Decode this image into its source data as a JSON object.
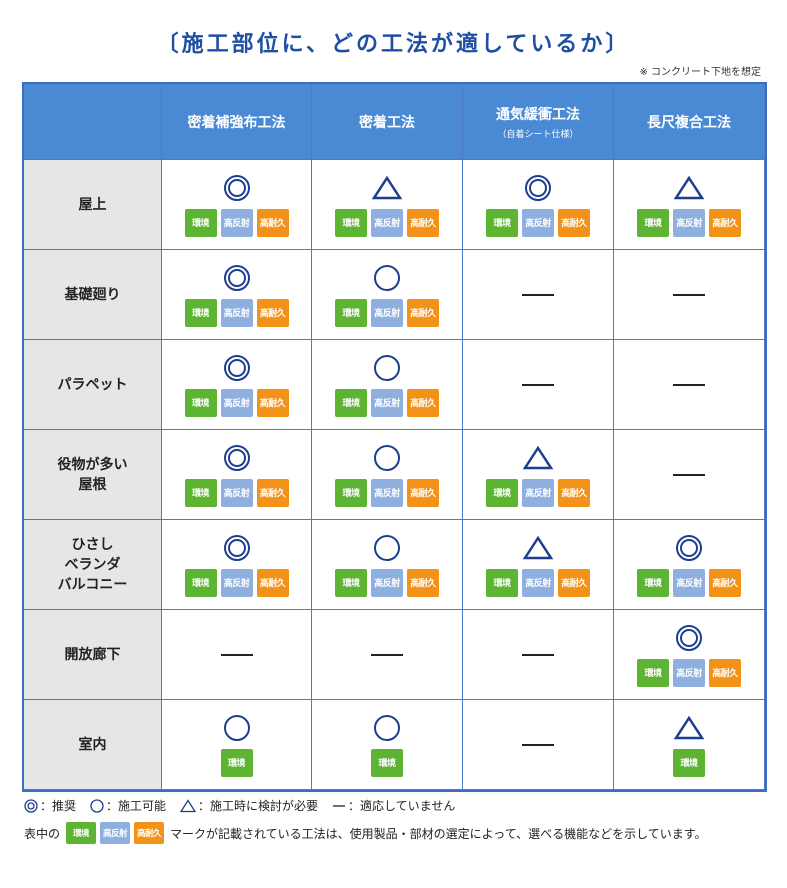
{
  "title": "〔施工部位に、どの工法が適しているか〕",
  "note": "※ コンクリート下地を想定",
  "headers": [
    {
      "label": "密着補強布工法",
      "sub": ""
    },
    {
      "label": "密着工法",
      "sub": ""
    },
    {
      "label": "通気緩衝工法",
      "sub": "（自着シート仕様）"
    },
    {
      "label": "長尺複合工法",
      "sub": ""
    }
  ],
  "badge_labels": {
    "env": "環境",
    "refl": "高反射",
    "dur": "高耐久"
  },
  "colors": {
    "header_bg": "#4a8ad4",
    "row_label_bg": "#e6e6e6",
    "border": "#3d6cc0",
    "mark": "#1d3e8f",
    "env": "#5cb432",
    "refl": "#8fb0df",
    "dur": "#f29218"
  },
  "rows": [
    {
      "label": "屋上",
      "cells": [
        {
          "mark": "double-circle",
          "badges": [
            "env",
            "refl",
            "dur"
          ]
        },
        {
          "mark": "triangle",
          "badges": [
            "env",
            "refl",
            "dur"
          ]
        },
        {
          "mark": "double-circle",
          "badges": [
            "env",
            "refl",
            "dur"
          ]
        },
        {
          "mark": "triangle",
          "badges": [
            "env",
            "refl",
            "dur"
          ]
        }
      ]
    },
    {
      "label": "基礎廻り",
      "cells": [
        {
          "mark": "double-circle",
          "badges": [
            "env",
            "refl",
            "dur"
          ]
        },
        {
          "mark": "circle",
          "badges": [
            "env",
            "refl",
            "dur"
          ]
        },
        {
          "mark": "dash",
          "badges": []
        },
        {
          "mark": "dash",
          "badges": []
        }
      ]
    },
    {
      "label": "パラペット",
      "cells": [
        {
          "mark": "double-circle",
          "badges": [
            "env",
            "refl",
            "dur"
          ]
        },
        {
          "mark": "circle",
          "badges": [
            "env",
            "refl",
            "dur"
          ]
        },
        {
          "mark": "dash",
          "badges": []
        },
        {
          "mark": "dash",
          "badges": []
        }
      ]
    },
    {
      "label": "役物が多い\n屋根",
      "cells": [
        {
          "mark": "double-circle",
          "badges": [
            "env",
            "refl",
            "dur"
          ]
        },
        {
          "mark": "circle",
          "badges": [
            "env",
            "refl",
            "dur"
          ]
        },
        {
          "mark": "triangle",
          "badges": [
            "env",
            "refl",
            "dur"
          ]
        },
        {
          "mark": "dash",
          "badges": []
        }
      ]
    },
    {
      "label": "ひさし\nベランダ\nバルコニー",
      "cells": [
        {
          "mark": "double-circle",
          "badges": [
            "env",
            "refl",
            "dur"
          ]
        },
        {
          "mark": "circle",
          "badges": [
            "env",
            "refl",
            "dur"
          ]
        },
        {
          "mark": "triangle",
          "badges": [
            "env",
            "refl",
            "dur"
          ]
        },
        {
          "mark": "double-circle",
          "badges": [
            "env",
            "refl",
            "dur"
          ]
        }
      ]
    },
    {
      "label": "開放廊下",
      "cells": [
        {
          "mark": "dash",
          "badges": []
        },
        {
          "mark": "dash",
          "badges": []
        },
        {
          "mark": "dash",
          "badges": []
        },
        {
          "mark": "double-circle",
          "badges": [
            "env",
            "refl",
            "dur"
          ]
        }
      ]
    },
    {
      "label": "室内",
      "cells": [
        {
          "mark": "circle",
          "badges": [
            "env"
          ]
        },
        {
          "mark": "circle",
          "badges": [
            "env"
          ]
        },
        {
          "mark": "dash",
          "badges": []
        },
        {
          "mark": "triangle",
          "badges": [
            "env"
          ]
        }
      ]
    }
  ],
  "legend": {
    "double_circle": "：推奨",
    "circle": "：施工可能",
    "triangle": "：施工時に検討が必要",
    "dash": "：適応していません",
    "lead": "表中の",
    "tail": "マークが記載されている工法は、使用製品・部材の選定によって、選べる機能などを示しています。"
  }
}
